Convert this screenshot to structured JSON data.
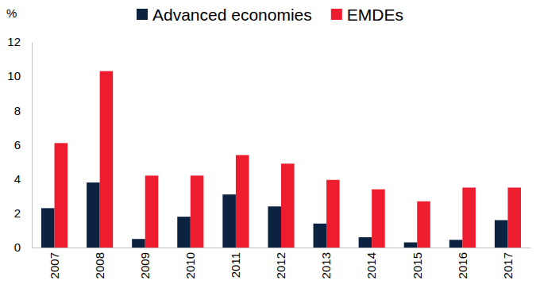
{
  "chart_data": {
    "type": "bar",
    "y_label": "%",
    "categories": [
      "2007",
      "2008",
      "2009",
      "2010",
      "2011",
      "2012",
      "2013",
      "2014",
      "2015",
      "2016",
      "2017"
    ],
    "series": [
      {
        "name": "Advanced economies",
        "color": "#0b2240",
        "values": [
          2.3,
          3.8,
          0.5,
          1.8,
          3.1,
          2.4,
          1.4,
          0.6,
          0.3,
          0.45,
          1.6
        ]
      },
      {
        "name": "EMDEs",
        "color": "#ed1c2e",
        "values": [
          6.1,
          10.3,
          4.2,
          4.2,
          5.4,
          4.9,
          3.95,
          3.4,
          2.7,
          3.5,
          3.5
        ]
      }
    ],
    "ylim": [
      0,
      12
    ],
    "yticks": [
      0,
      2,
      4,
      6,
      8,
      10,
      12
    ],
    "legend": "top",
    "grid": false
  }
}
